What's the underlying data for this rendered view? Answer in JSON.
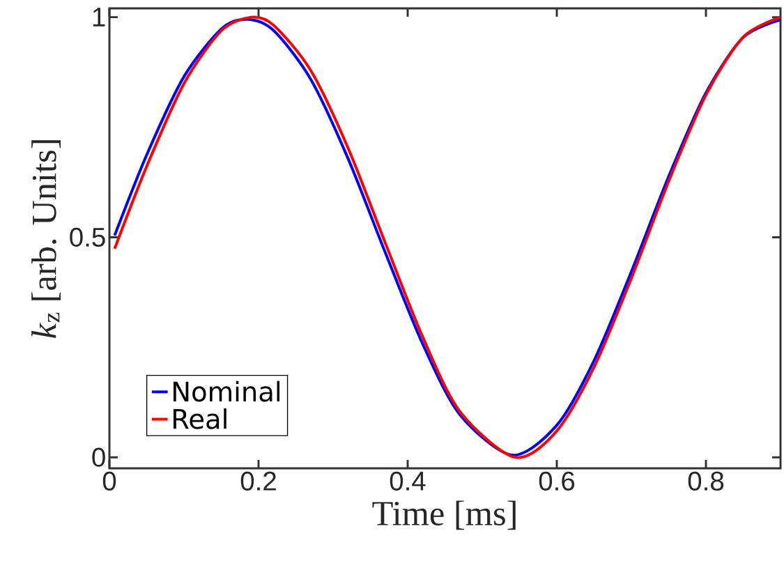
{
  "chart_data": {
    "type": "line",
    "xlabel": "Time [ms]",
    "ylabel": "*k*$_{z}$ [arb. Units]",
    "xlim": [
      0,
      0.9
    ],
    "ylim": [
      -0.025,
      1.02
    ],
    "xticks": [
      0,
      0.2,
      0.4,
      0.6,
      0.8
    ],
    "yticks": [
      0,
      0.5,
      1
    ],
    "legend": "bottom left",
    "grid": false,
    "marker": "none",
    "line_style": "solid",
    "x": [
      0.007,
      0.05,
      0.1,
      0.15,
      0.184,
      0.22,
      0.27,
      0.32,
      0.37,
      0.42,
      0.47,
      0.54,
      0.6,
      0.65,
      0.7,
      0.75,
      0.8,
      0.85,
      0.9
    ],
    "series": [
      {
        "name": "Nominal",
        "color": "#0000ff",
        "values": [
          0.504,
          0.687,
          0.865,
          0.973,
          0.995,
          0.97,
          0.859,
          0.679,
          0.465,
          0.258,
          0.097,
          0.005,
          0.073,
          0.22,
          0.422,
          0.638,
          0.828,
          0.954,
          0.994
        ]
      },
      {
        "name": "Real",
        "color": "#ff0000",
        "x": [
          0.007,
          0.05,
          0.1,
          0.15,
          0.19,
          0.22,
          0.27,
          0.32,
          0.37,
          0.42,
          0.47,
          0.544,
          0.6,
          0.65,
          0.7,
          0.75,
          0.8,
          0.85,
          0.9
        ],
        "values": [
          0.474,
          0.661,
          0.849,
          0.969,
          1.0,
          0.982,
          0.879,
          0.703,
          0.487,
          0.274,
          0.104,
          0.0,
          0.06,
          0.205,
          0.407,
          0.627,
          0.823,
          0.955,
          1.0
        ]
      }
    ]
  }
}
